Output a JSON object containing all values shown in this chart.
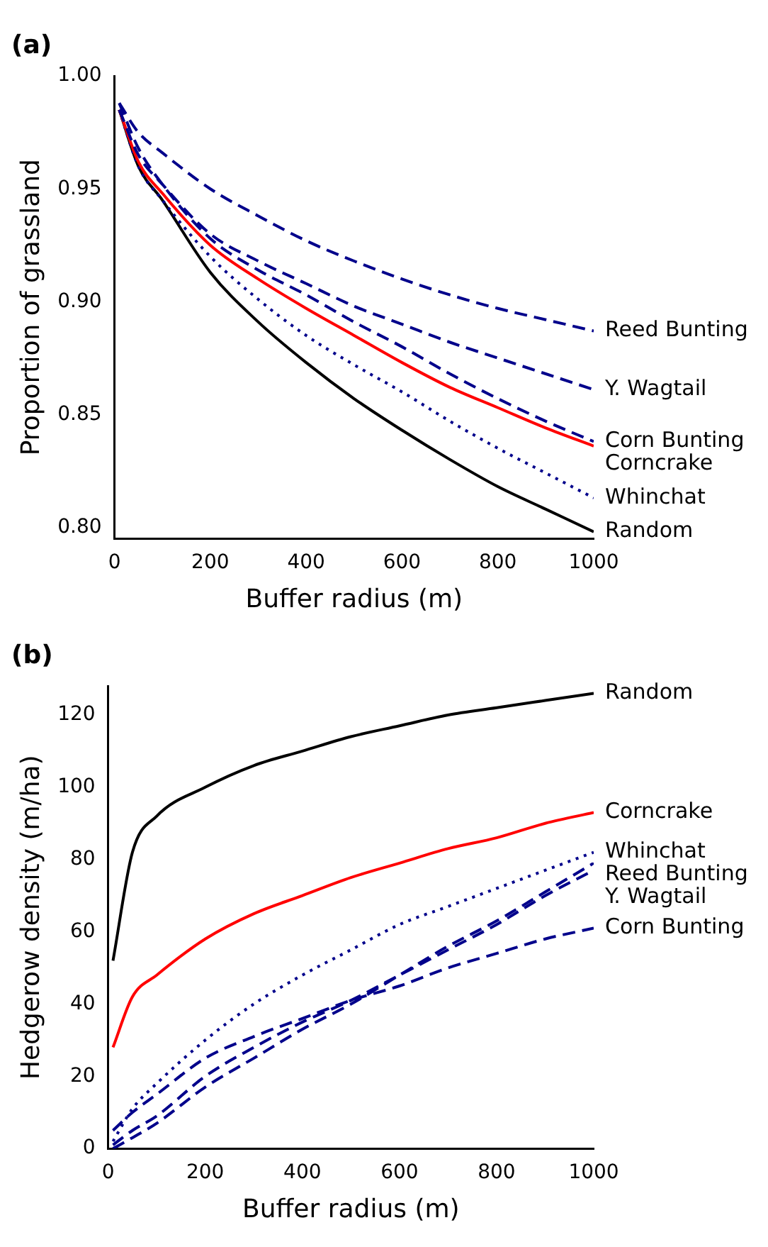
{
  "chart_data": [
    {
      "type": "line",
      "title": "(a)",
      "xlabel": "Buffer radius (m)",
      "ylabel": "Proportion of grassland",
      "x": [
        10,
        50,
        100,
        200,
        300,
        400,
        500,
        600,
        700,
        800,
        900,
        1000
      ],
      "xlim": [
        0,
        1000
      ],
      "xticks": [
        0,
        200,
        400,
        600,
        800,
        1000
      ],
      "ylim": [
        0.795,
        1.0
      ],
      "yticks": [
        {
          "value": 0.8,
          "label": "0.80"
        },
        {
          "value": 0.85,
          "label": "0.85"
        },
        {
          "value": 0.9,
          "label": "0.90"
        },
        {
          "value": 0.95,
          "label": "0.95"
        },
        {
          "value": 1.0,
          "label": "1.00"
        }
      ],
      "series": [
        {
          "name": "Reed Bunting",
          "color": "#00008b",
          "line_style": "dashed",
          "values": [
            0.988,
            0.975,
            0.966,
            0.95,
            0.938,
            0.927,
            0.918,
            0.91,
            0.903,
            0.897,
            0.892,
            0.887
          ]
        },
        {
          "name": "Y. Wagtail",
          "color": "#00008b",
          "line_style": "dashed",
          "values": [
            0.985,
            0.965,
            0.952,
            0.93,
            0.918,
            0.908,
            0.898,
            0.89,
            0.882,
            0.875,
            0.868,
            0.861
          ]
        },
        {
          "name": "Corn Bunting",
          "color": "#00008b",
          "line_style": "dashed",
          "values": [
            0.988,
            0.968,
            0.952,
            0.928,
            0.914,
            0.903,
            0.891,
            0.88,
            0.868,
            0.857,
            0.847,
            0.838
          ]
        },
        {
          "name": "Corncrake",
          "color": "#ff0000",
          "line_style": "solid",
          "values": [
            0.985,
            0.962,
            0.948,
            0.925,
            0.91,
            0.897,
            0.885,
            0.873,
            0.862,
            0.853,
            0.844,
            0.836
          ]
        },
        {
          "name": "Whinchat",
          "color": "#00008b",
          "line_style": "dotted",
          "values": [
            0.985,
            0.96,
            0.945,
            0.92,
            0.901,
            0.885,
            0.872,
            0.86,
            0.847,
            0.835,
            0.824,
            0.813
          ]
        },
        {
          "name": "Random",
          "color": "#000000",
          "line_style": "solid",
          "values": [
            0.985,
            0.96,
            0.945,
            0.913,
            0.891,
            0.873,
            0.857,
            0.843,
            0.83,
            0.818,
            0.808,
            0.798
          ]
        }
      ]
    },
    {
      "type": "line",
      "title": "(b)",
      "xlabel": "Buffer radius (m)",
      "ylabel": "Hedgerow density (m/ha)",
      "x": [
        10,
        50,
        100,
        200,
        300,
        400,
        500,
        600,
        700,
        800,
        900,
        1000
      ],
      "xlim": [
        0,
        1000
      ],
      "xticks": [
        0,
        200,
        400,
        600,
        800,
        1000
      ],
      "ylim": [
        0,
        128
      ],
      "yticks": [
        0,
        20,
        40,
        60,
        80,
        100,
        120
      ],
      "series": [
        {
          "name": "Random",
          "color": "#000000",
          "line_style": "solid",
          "values": [
            52,
            82,
            92,
            100,
            106,
            110,
            114,
            117,
            120,
            122,
            124,
            126
          ]
        },
        {
          "name": "Corncrake",
          "color": "#ff0000",
          "line_style": "solid",
          "values": [
            28,
            42,
            48,
            58,
            65,
            70,
            75,
            79,
            83,
            86,
            90,
            93
          ]
        },
        {
          "name": "Whinchat",
          "color": "#00008b",
          "line_style": "dotted",
          "values": [
            2,
            11,
            18,
            30,
            40,
            48,
            55,
            62,
            67,
            72,
            77,
            82
          ]
        },
        {
          "name": "Reed Bunting",
          "color": "#00008b",
          "line_style": "dashed",
          "values": [
            0,
            3,
            7,
            17,
            25,
            33,
            40,
            48,
            56,
            63,
            71,
            79
          ]
        },
        {
          "name": "Y. Wagtail",
          "color": "#00008b",
          "line_style": "dashed",
          "values": [
            1,
            5,
            9,
            20,
            28,
            35,
            41,
            48,
            55,
            62,
            70,
            77
          ]
        },
        {
          "name": "Corn Bunting",
          "color": "#00008b",
          "line_style": "dashed",
          "values": [
            5,
            10,
            15,
            25,
            31,
            36,
            41,
            45,
            50,
            54,
            58,
            61
          ]
        }
      ]
    }
  ]
}
